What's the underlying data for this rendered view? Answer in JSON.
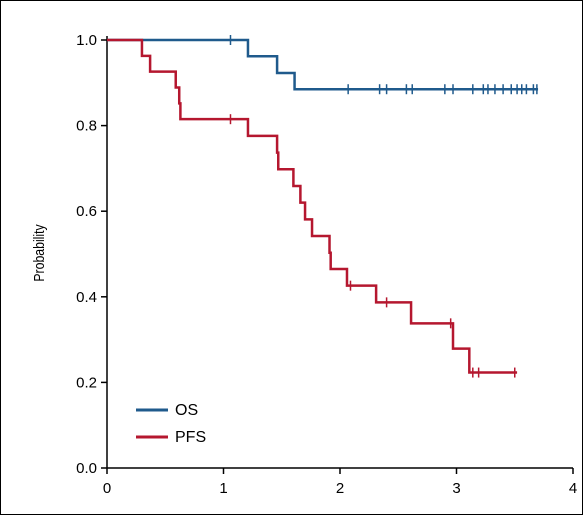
{
  "chart_data": {
    "type": "line",
    "step": true,
    "ylabel": "Probability",
    "xlabel": "",
    "xlim": [
      0,
      4
    ],
    "ylim": [
      0,
      1
    ],
    "x_ticks": [
      0,
      1,
      2,
      3,
      4
    ],
    "y_ticks": [
      0.0,
      0.2,
      0.4,
      0.6,
      0.8,
      1.0
    ],
    "x_tick_labels": [
      "0",
      "1",
      "2",
      "3",
      "4"
    ],
    "y_tick_labels": [
      "0.0",
      "0.2",
      "0.4",
      "0.6",
      "0.8",
      "1.0"
    ],
    "legend_position": "bottom-left",
    "grid": false,
    "series": [
      {
        "name": "OS",
        "color": "#1f5a8c",
        "steps": [
          [
            0,
            1.0
          ],
          [
            1.21,
            0.962
          ],
          [
            1.46,
            0.923
          ],
          [
            1.61,
            0.885
          ],
          [
            3.7,
            0.885
          ]
        ],
        "censored": [
          [
            1.06,
            1.0
          ],
          [
            2.07,
            0.885
          ],
          [
            2.34,
            0.885
          ],
          [
            2.4,
            0.885
          ],
          [
            2.57,
            0.885
          ],
          [
            2.62,
            0.885
          ],
          [
            2.9,
            0.885
          ],
          [
            2.97,
            0.885
          ],
          [
            3.14,
            0.885
          ],
          [
            3.23,
            0.885
          ],
          [
            3.27,
            0.885
          ],
          [
            3.33,
            0.885
          ],
          [
            3.4,
            0.885
          ],
          [
            3.47,
            0.885
          ],
          [
            3.52,
            0.885
          ],
          [
            3.56,
            0.885
          ],
          [
            3.6,
            0.885
          ],
          [
            3.66,
            0.885
          ],
          [
            3.69,
            0.885
          ]
        ]
      },
      {
        "name": "PFS",
        "color": "#b5172f",
        "steps": [
          [
            0,
            1.0
          ],
          [
            0.3,
            0.963
          ],
          [
            0.37,
            0.926
          ],
          [
            0.59,
            0.889
          ],
          [
            0.62,
            0.852
          ],
          [
            0.63,
            0.815
          ],
          [
            1.21,
            0.776
          ],
          [
            1.46,
            0.737
          ],
          [
            1.47,
            0.698
          ],
          [
            1.6,
            0.659
          ],
          [
            1.66,
            0.62
          ],
          [
            1.7,
            0.581
          ],
          [
            1.76,
            0.542
          ],
          [
            1.91,
            0.503
          ],
          [
            1.92,
            0.465
          ],
          [
            2.06,
            0.426
          ],
          [
            2.31,
            0.387
          ],
          [
            2.61,
            0.338
          ],
          [
            2.97,
            0.279
          ],
          [
            3.11,
            0.223
          ],
          [
            3.52,
            0.223
          ]
        ],
        "censored": [
          [
            1.06,
            0.815
          ],
          [
            2.09,
            0.426
          ],
          [
            2.4,
            0.387
          ],
          [
            2.95,
            0.338
          ],
          [
            3.14,
            0.223
          ],
          [
            3.19,
            0.223
          ],
          [
            3.5,
            0.223
          ]
        ]
      }
    ]
  }
}
